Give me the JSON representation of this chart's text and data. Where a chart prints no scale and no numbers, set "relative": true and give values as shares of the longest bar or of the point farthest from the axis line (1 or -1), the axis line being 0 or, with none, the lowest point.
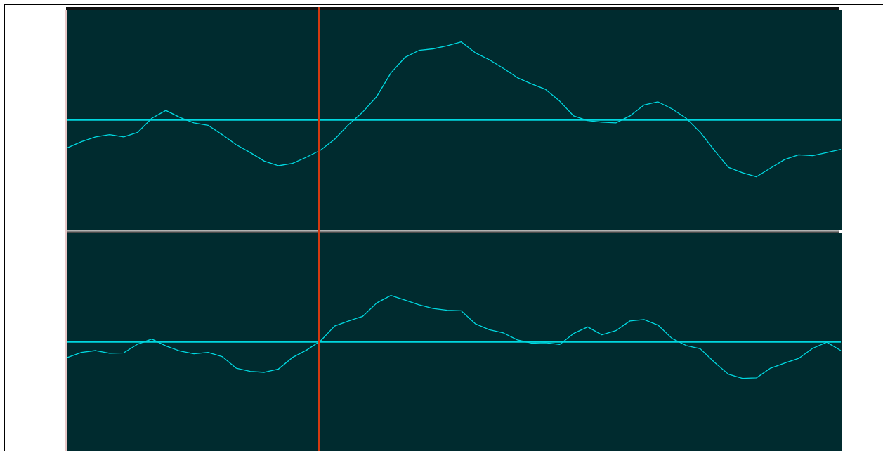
{
  "chart_data": [
    {
      "type": "line",
      "relative": true,
      "grid": false,
      "legend": false,
      "ref_lines": [
        {
          "axis": "y",
          "value": 0,
          "color": "#00d8e0"
        }
      ],
      "categories": [
        null,
        null,
        null,
        null,
        null,
        null,
        null,
        null,
        null,
        null,
        null,
        null,
        null,
        null,
        null,
        null,
        null,
        null,
        null,
        null,
        null,
        null,
        null,
        null,
        null,
        null,
        null,
        null,
        null,
        null,
        null,
        null,
        null,
        null,
        null,
        null,
        null,
        null,
        null,
        null,
        null,
        null,
        null,
        null,
        null,
        null,
        null,
        null,
        null,
        null,
        null,
        null,
        null,
        null,
        null,
        null
      ],
      "series": [
        {
          "color": "#00d8e0",
          "values": [
            -0.36,
            -0.28,
            -0.22,
            -0.19,
            -0.22,
            -0.16,
            0.02,
            0.12,
            0.03,
            -0.04,
            -0.07,
            -0.19,
            -0.32,
            -0.42,
            -0.53,
            -0.59,
            -0.56,
            -0.48,
            -0.39,
            -0.25,
            -0.06,
            0.1,
            0.3,
            0.6,
            0.8,
            0.89,
            0.91,
            0.95,
            1,
            0.86,
            0.77,
            0.66,
            0.54,
            0.46,
            0.39,
            0.24,
            0.05,
            -0.01,
            -0.03,
            -0.04,
            0.05,
            0.19,
            0.23,
            0.14,
            0.02,
            -0.16,
            -0.39,
            -0.61,
            -0.68,
            -0.73,
            -0.62,
            -0.51,
            -0.45,
            -0.46,
            -0.42,
            -0.38
          ]
        }
      ]
    },
    {
      "type": "line",
      "relative": true,
      "grid": false,
      "legend": false,
      "ref_lines": [
        {
          "axis": "y",
          "value": 0,
          "color": "#00d8e0"
        }
      ],
      "categories": [
        null,
        null,
        null,
        null,
        null,
        null,
        null,
        null,
        null,
        null,
        null,
        null,
        null,
        null,
        null,
        null,
        null,
        null,
        null,
        null,
        null,
        null,
        null,
        null,
        null,
        null,
        null,
        null,
        null,
        null,
        null,
        null,
        null,
        null,
        null,
        null,
        null,
        null,
        null,
        null,
        null,
        null,
        null,
        null,
        null,
        null,
        null,
        null,
        null,
        null,
        null,
        null,
        null,
        null,
        null,
        null
      ],
      "series": [
        {
          "color": "#00d8e0",
          "values": [
            -0.34,
            -0.23,
            -0.19,
            -0.25,
            -0.24,
            -0.05,
            0.06,
            -0.09,
            -0.2,
            -0.26,
            -0.23,
            -0.32,
            -0.57,
            -0.64,
            -0.66,
            -0.59,
            -0.34,
            -0.18,
            0.02,
            0.34,
            0.45,
            0.55,
            0.84,
            1,
            0.9,
            0.8,
            0.72,
            0.68,
            0.67,
            0.39,
            0.26,
            0.19,
            0.04,
            -0.03,
            -0.02,
            -0.06,
            0.18,
            0.32,
            0.15,
            0.24,
            0.45,
            0.48,
            0.36,
            0.07,
            -0.08,
            -0.15,
            -0.44,
            -0.7,
            -0.79,
            -0.78,
            -0.57,
            -0.46,
            -0.36,
            -0.14,
            -0.01,
            -0.19
          ]
        }
      ]
    }
  ]
}
